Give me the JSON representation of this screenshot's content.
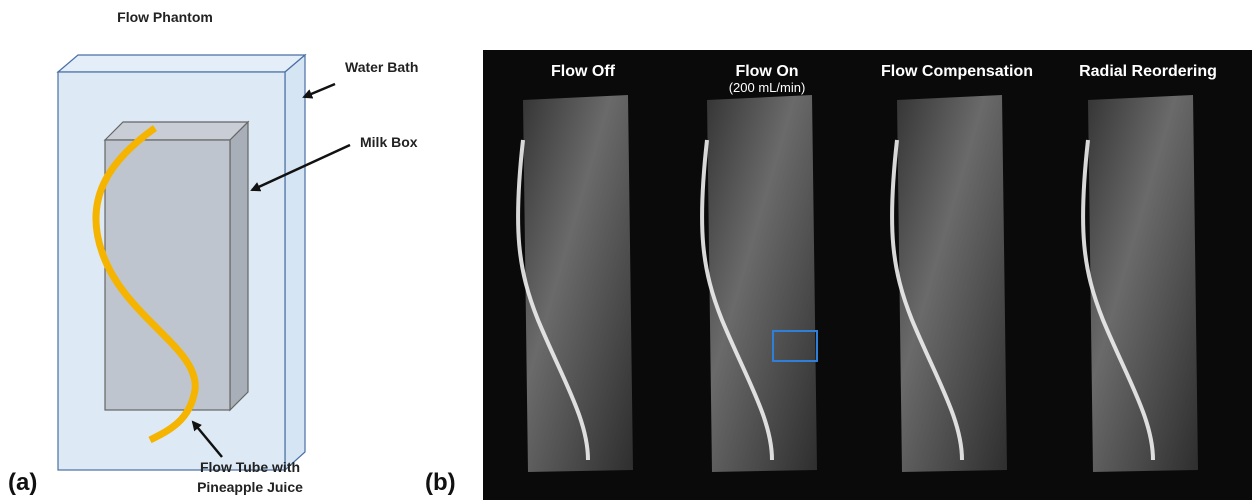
{
  "panel_a": {
    "title": "Flow Phantom",
    "label": "(a)",
    "water_bath": "Water Bath",
    "milk_box": "Milk Box",
    "tube_line1": "Flow Tube with",
    "tube_line2": "Pineapple Juice"
  },
  "panel_b": {
    "label": "(b)",
    "columns": [
      {
        "title": "Flow Off"
      },
      {
        "title": "Flow On",
        "subtitle": "(200 mL/min)"
      },
      {
        "title": "Flow Compensation"
      },
      {
        "title": "Radial Reordering"
      }
    ]
  }
}
